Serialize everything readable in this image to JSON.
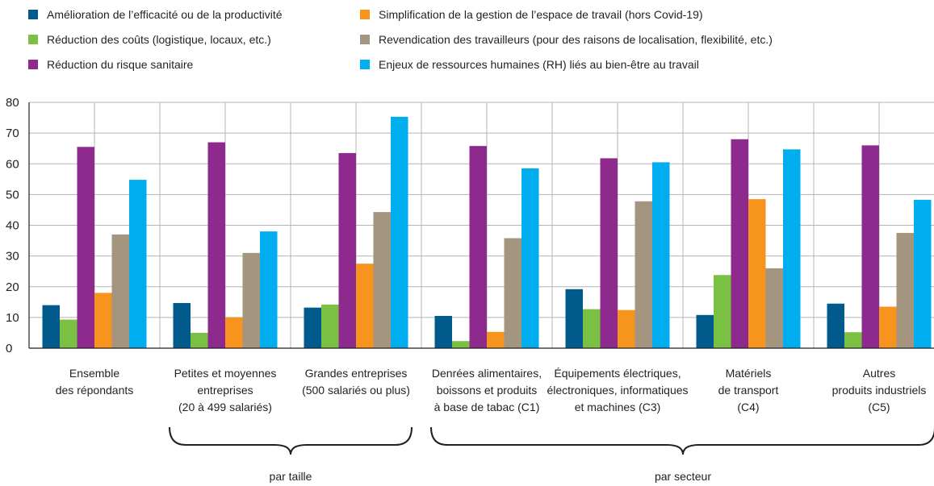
{
  "chart_data": {
    "type": "bar",
    "ylim": [
      0,
      80
    ],
    "yticks": [
      0,
      10,
      20,
      30,
      40,
      50,
      60,
      70,
      80
    ],
    "grid": true,
    "legend_position": "top",
    "categories": [
      [
        "Ensemble",
        "des répondants"
      ],
      [
        "Petites et moyennes",
        "entreprises",
        "(20 à 499 salariés)"
      ],
      [
        "Grandes entreprises",
        "(500 salariés ou plus)"
      ],
      [
        "Denrées alimentaires,",
        "boissons et produits",
        "à base de tabac (C1)"
      ],
      [
        "Équipements électriques,",
        "électroniques, informatiques",
        "et machines (C3)"
      ],
      [
        "Matériels",
        "de transport",
        "(C4)"
      ],
      [
        "Autres",
        "produits industriels",
        "(C5)"
      ]
    ],
    "groups": [
      {
        "label": "par taille",
        "from": 1,
        "to": 2
      },
      {
        "label": "par secteur",
        "from": 3,
        "to": 6
      }
    ],
    "series": [
      {
        "name": "Amélioration de l’efficacité ou de la productivité",
        "color": "#005a8c",
        "values": [
          14,
          14.7,
          13.2,
          10.5,
          19.2,
          10.8,
          14.5
        ]
      },
      {
        "name": "Réduction des coûts (logistique, locaux, etc.)",
        "color": "#7ac143",
        "values": [
          9.3,
          5,
          14.2,
          2.3,
          12.7,
          23.8,
          5.2
        ]
      },
      {
        "name": "Réduction du risque sanitaire",
        "color": "#8e2a8e",
        "values": [
          65.5,
          67,
          63.5,
          65.8,
          61.8,
          68,
          66
        ]
      },
      {
        "name": "Simplification de la gestion de l’espace de travail (hors Covid-19)",
        "color": "#f7941d",
        "values": [
          18,
          10,
          27.5,
          5.3,
          12.4,
          48.5,
          13.5
        ]
      },
      {
        "name": "Revendication des travailleurs (pour des raisons de localisation, flexibilité, etc.)",
        "color": "#a39580",
        "values": [
          37,
          31,
          44.3,
          35.8,
          47.8,
          26,
          37.5
        ]
      },
      {
        "name": "Enjeux de ressources humaines (RH) liés au bien-être au travail",
        "color": "#00aeef",
        "values": [
          54.8,
          38,
          75.3,
          58.5,
          60.5,
          64.7,
          48.3
        ]
      }
    ]
  }
}
